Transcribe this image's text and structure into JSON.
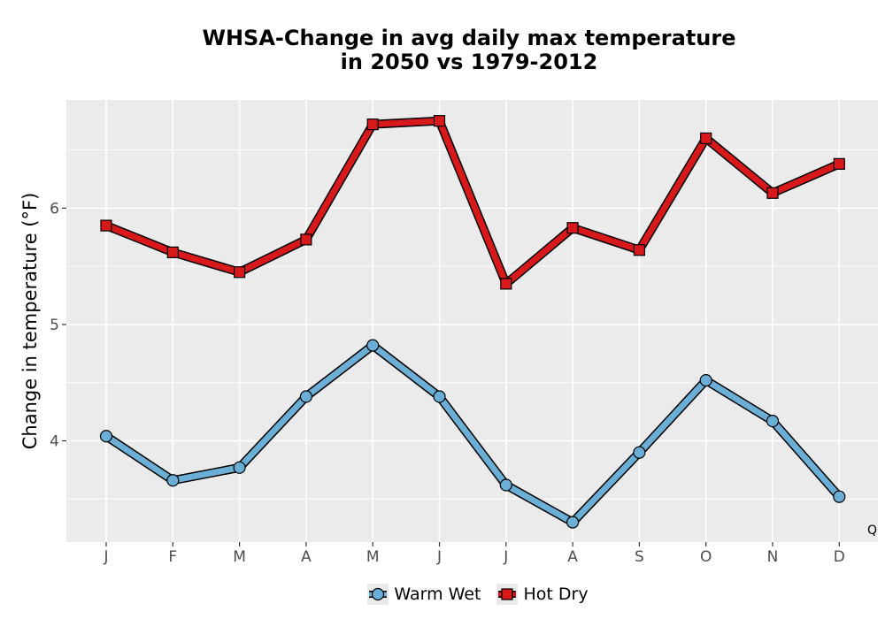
{
  "chart_data": {
    "type": "line",
    "title": "WHSA-Change in avg daily max temperature\nin 2050 vs 1979-2012",
    "xlabel": "",
    "ylabel": "Change in temperature (°F)",
    "categories": [
      "J",
      "F",
      "M",
      "A",
      "M",
      "J",
      "J",
      "A",
      "S",
      "O",
      "N",
      "D"
    ],
    "yticks": [
      4,
      5,
      6
    ],
    "ylim": [
      3.13,
      6.93
    ],
    "grid": true,
    "legend_position": "bottom",
    "corner_note": "Q",
    "series": [
      {
        "name": "Warm Wet",
        "marker": "circle",
        "color": "#6baed6",
        "values": [
          4.04,
          3.66,
          3.77,
          4.38,
          4.82,
          4.38,
          3.62,
          3.3,
          3.9,
          4.52,
          4.17,
          3.52
        ]
      },
      {
        "name": "Hot Dry",
        "marker": "square",
        "color": "#d7191c",
        "values": [
          5.85,
          5.62,
          5.45,
          5.73,
          6.72,
          6.75,
          5.35,
          5.83,
          5.64,
          6.6,
          6.13,
          6.38
        ]
      }
    ]
  }
}
